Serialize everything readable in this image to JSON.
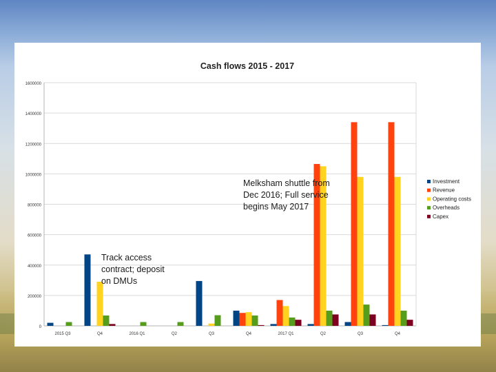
{
  "colors": {
    "investment": "#004586",
    "revenue": "#ff420e",
    "operating_costs": "#ffd320",
    "overheads": "#579d1c",
    "capex": "#7e0021",
    "grid": "#d9d9d9"
  },
  "annotations": {
    "melksham": [
      "Melksham shuttle from",
      "Dec 2016; Full service",
      "begins May 2017"
    ],
    "track": [
      "Track access",
      "contract; deposit",
      "on DMUs"
    ]
  },
  "chart_data": {
    "type": "bar",
    "title": "Cash flows 2015 - 2017",
    "xlabel": "",
    "ylabel": "",
    "ylim": [
      0,
      1600000
    ],
    "y_ticks": [
      0,
      200000,
      400000,
      600000,
      800000,
      1000000,
      1200000,
      1400000,
      1600000
    ],
    "y_tick_labels": [
      "0",
      "200000",
      "400000",
      "600000",
      "800000",
      "1000000",
      "1200000",
      "1400000",
      "1600000"
    ],
    "grid": true,
    "legend_position": "right",
    "categories": [
      "2015 Q3",
      "Q4",
      "2016 Q1",
      "Q2",
      "Q3",
      "Q4",
      "2017 Q1",
      "Q2",
      "Q3",
      "Q4"
    ],
    "series": [
      {
        "name": "Investment",
        "color_key": "investment",
        "values": [
          20000,
          470000,
          0,
          0,
          295000,
          100000,
          12000,
          12000,
          25000,
          5000
        ]
      },
      {
        "name": "Revenue",
        "color_key": "revenue",
        "values": [
          0,
          0,
          0,
          0,
          0,
          85000,
          170000,
          1065000,
          1340000,
          1340000
        ]
      },
      {
        "name": "Operating costs",
        "color_key": "operating_costs",
        "values": [
          0,
          290000,
          0,
          0,
          15000,
          90000,
          130000,
          1050000,
          980000,
          980000
        ]
      },
      {
        "name": "Overheads",
        "color_key": "overheads",
        "values": [
          25000,
          68000,
          25000,
          25000,
          70000,
          68000,
          55000,
          100000,
          140000,
          100000
        ]
      },
      {
        "name": "Capex",
        "color_key": "capex",
        "values": [
          0,
          12000,
          0,
          0,
          0,
          5000,
          40000,
          75000,
          75000,
          40000
        ]
      }
    ]
  }
}
